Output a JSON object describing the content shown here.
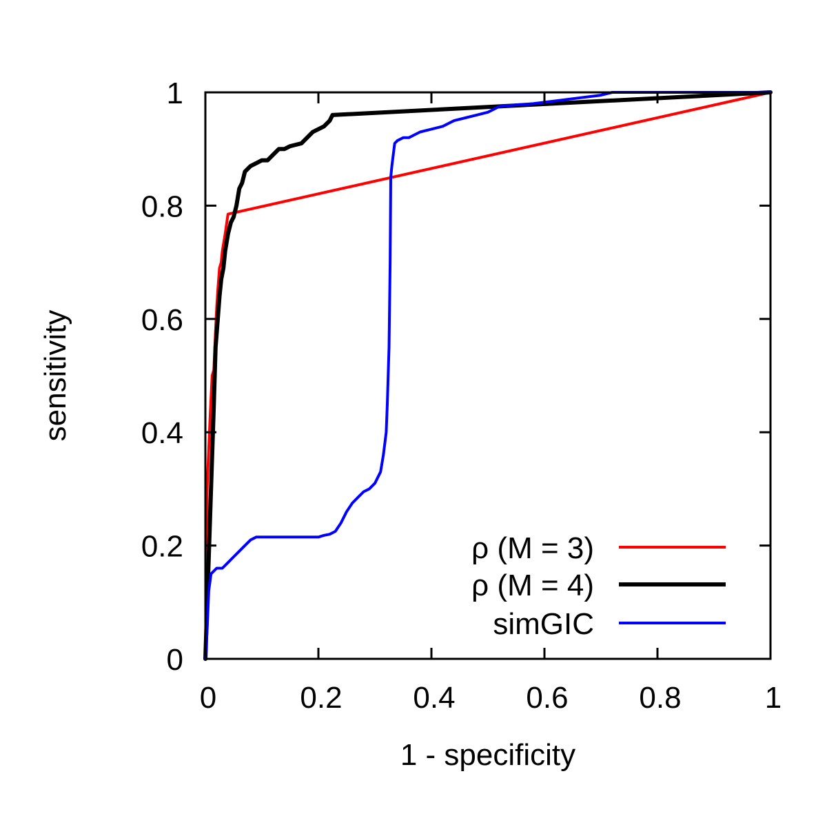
{
  "chart_data": {
    "type": "line",
    "xlabel": "1 - specificity",
    "ylabel": "sensitivity",
    "xlim": [
      0,
      1
    ],
    "ylim": [
      0,
      1
    ],
    "xticks": [
      "0",
      "0.2",
      "0.4",
      "0.6",
      "0.8",
      "1"
    ],
    "yticks": [
      "0",
      "0.2",
      "0.4",
      "0.6",
      "0.8",
      "1"
    ],
    "grid": false,
    "legend_position": "bottom-right",
    "series": [
      {
        "name": "ρ (M = 3)",
        "color": "#ff0000",
        "x": [
          0,
          0.003,
          0.008,
          0.012,
          0.015,
          0.018,
          0.02,
          0.022,
          0.025,
          0.028,
          0.03,
          0.035,
          0.04,
          1.0
        ],
        "y": [
          0,
          0.3,
          0.42,
          0.5,
          0.51,
          0.58,
          0.62,
          0.65,
          0.69,
          0.7,
          0.72,
          0.75,
          0.785,
          1.0
        ]
      },
      {
        "name": "ρ (M = 4)",
        "color": "#000000",
        "x": [
          0,
          0.005,
          0.01,
          0.015,
          0.018,
          0.022,
          0.025,
          0.028,
          0.032,
          0.035,
          0.04,
          0.045,
          0.05,
          0.055,
          0.06,
          0.065,
          0.07,
          0.08,
          0.09,
          0.1,
          0.11,
          0.12,
          0.13,
          0.14,
          0.15,
          0.17,
          0.18,
          0.19,
          0.2,
          0.21,
          0.22,
          0.225,
          1.0
        ],
        "y": [
          0,
          0.15,
          0.3,
          0.45,
          0.55,
          0.6,
          0.64,
          0.67,
          0.69,
          0.72,
          0.75,
          0.77,
          0.78,
          0.8,
          0.83,
          0.84,
          0.86,
          0.87,
          0.875,
          0.88,
          0.88,
          0.89,
          0.9,
          0.9,
          0.905,
          0.91,
          0.92,
          0.93,
          0.935,
          0.94,
          0.95,
          0.96,
          1.0
        ]
      },
      {
        "name": "simGIC",
        "color": "#0000ff",
        "x": [
          0,
          0.003,
          0.006,
          0.01,
          0.02,
          0.03,
          0.04,
          0.05,
          0.06,
          0.07,
          0.08,
          0.09,
          0.1,
          0.15,
          0.2,
          0.21,
          0.22,
          0.23,
          0.24,
          0.25,
          0.26,
          0.27,
          0.28,
          0.29,
          0.3,
          0.31,
          0.315,
          0.32,
          0.322,
          0.325,
          0.327,
          0.328,
          0.33,
          0.335,
          0.34,
          0.35,
          0.36,
          0.37,
          0.38,
          0.4,
          0.42,
          0.44,
          0.46,
          0.48,
          0.5,
          0.52,
          0.55,
          0.58,
          0.62,
          0.66,
          0.7,
          0.72,
          1.0
        ],
        "y": [
          0,
          0.05,
          0.12,
          0.15,
          0.16,
          0.16,
          0.17,
          0.18,
          0.19,
          0.2,
          0.21,
          0.215,
          0.215,
          0.215,
          0.215,
          0.218,
          0.22,
          0.225,
          0.24,
          0.26,
          0.275,
          0.285,
          0.295,
          0.3,
          0.31,
          0.33,
          0.36,
          0.4,
          0.45,
          0.55,
          0.7,
          0.85,
          0.87,
          0.91,
          0.915,
          0.92,
          0.92,
          0.925,
          0.93,
          0.935,
          0.94,
          0.95,
          0.955,
          0.96,
          0.965,
          0.975,
          0.978,
          0.98,
          0.985,
          0.99,
          0.995,
          1.0,
          1.0
        ]
      }
    ]
  }
}
